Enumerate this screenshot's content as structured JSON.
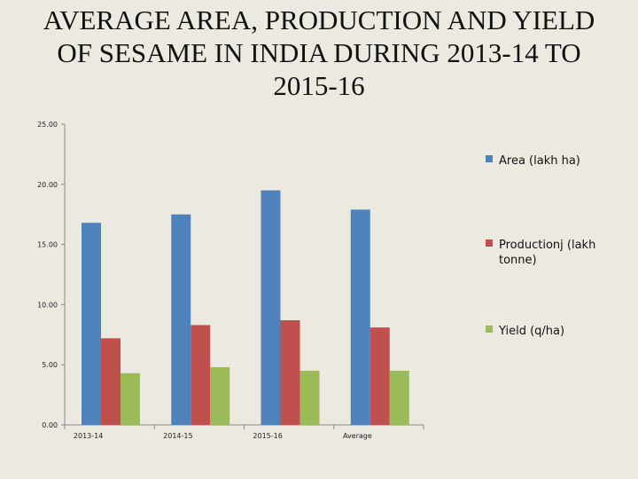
{
  "title_lines": [
    "AVERAGE AREA, PRODUCTION AND YIELD",
    "OF SESAME IN INDIA DURING 2013-14 TO",
    "2015-16"
  ],
  "chart_data": {
    "type": "bar",
    "title": "AVERAGE AREA, PRODUCTION AND YIELD OF SESAME IN INDIA DURING 2013-14 TO 2015-16",
    "categories": [
      "2013-14",
      "2014-15",
      "2015-16",
      "Average"
    ],
    "series": [
      {
        "name": "Area (lakh ha)",
        "color": "#4F81BD",
        "values": [
          16.8,
          17.5,
          19.5,
          17.9
        ]
      },
      {
        "name": "Productionj (lakh tonne)",
        "color": "#C0504D",
        "values": [
          7.2,
          8.3,
          8.7,
          8.1
        ]
      },
      {
        "name": "Yield (q/ha)",
        "color": "#9BBB59",
        "values": [
          4.3,
          4.8,
          4.5,
          4.5
        ]
      }
    ],
    "ylim": [
      0,
      25
    ],
    "yticks": [
      "0.00",
      "5.00",
      "10.00",
      "15.00",
      "20.00",
      "25.00"
    ],
    "ytick_values": [
      0,
      5,
      10,
      15,
      20,
      25
    ],
    "xlabel": "",
    "ylabel": "",
    "grid": false,
    "legend_position": "right"
  }
}
